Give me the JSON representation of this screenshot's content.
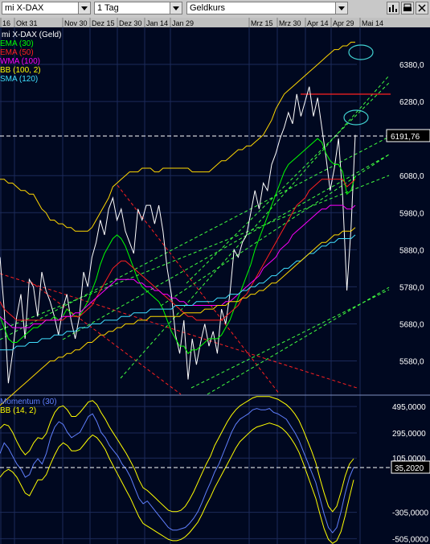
{
  "toolbar": {
    "instrument": "mi X-DAX",
    "period": "1 Tag",
    "price_type": "Geldkurs"
  },
  "chart_data": [
    {
      "type": "line",
      "title": "mi X-DAX (Geld)",
      "x_labels": [
        "16",
        "Okt 31",
        "Nov 30",
        "Dez 15",
        "Dez 30",
        "Jan 14",
        "Jan 29",
        "Mrz 15",
        "Mrz 30",
        "Apr 14",
        "Apr 29",
        "Mai 14"
      ],
      "y_ticks": [
        "6380,0",
        "6280,0",
        "6191,76",
        "6080,0",
        "5980,0",
        "5880,0",
        "5780,0",
        "5680,0",
        "5580,0"
      ],
      "ylim": [
        5490,
        6480
      ],
      "last_value": "6191,76",
      "legend": [
        {
          "name": "EMA (30)",
          "color": "#00ff00"
        },
        {
          "name": "EMA (50)",
          "color": "#ff2020"
        },
        {
          "name": "WMA (100)",
          "color": "#ff00ff"
        },
        {
          "name": "BB (100, 2)",
          "color": "#ffff00"
        },
        {
          "name": "SMA (120)",
          "color": "#40e0ff"
        }
      ],
      "series": [
        {
          "color": "#ffffff",
          "values": [
            5860,
            5720,
            5520,
            5600,
            5700,
            5760,
            5640,
            5800,
            5780,
            5700,
            5820,
            5770,
            5740,
            5700,
            5650,
            5720,
            5760,
            5690,
            5640,
            5700,
            5820,
            5780,
            5860,
            5900,
            5960,
            5920,
            5990,
            6020,
            5960,
            5990,
            5930,
            5900,
            5870,
            5990,
            5960,
            6000,
            6000,
            5950,
            6000,
            5930,
            5830,
            5760,
            5650,
            5600,
            5690,
            5530,
            5640,
            5570,
            5630,
            5680,
            5620,
            5660,
            5600,
            5720,
            5680,
            5760,
            5880,
            5860,
            5900,
            5920,
            5980,
            6040,
            5990,
            6060,
            6040,
            6110,
            6140,
            6180,
            6210,
            6250,
            6220,
            6300,
            6240,
            6280,
            6320,
            6240,
            6290,
            6210,
            6130,
            6040,
            6100,
            6180,
            6020,
            5770,
            5940,
            6190
          ]
        },
        {
          "color": "#00ff00",
          "values": [
            5700,
            5670,
            5640,
            5630,
            5630,
            5640,
            5650,
            5660,
            5670,
            5670,
            5680,
            5690,
            5690,
            5700,
            5690,
            5700,
            5720,
            5710,
            5700,
            5700,
            5720,
            5740,
            5770,
            5800,
            5840,
            5870,
            5890,
            5910,
            5920,
            5910,
            5890,
            5860,
            5830,
            5800,
            5780,
            5770,
            5760,
            5750,
            5740,
            5720,
            5690,
            5660,
            5640,
            5620,
            5620,
            5600,
            5610,
            5610,
            5620,
            5630,
            5640,
            5640,
            5640,
            5650,
            5670,
            5690,
            5720,
            5750,
            5780,
            5810,
            5840,
            5880,
            5910,
            5940,
            5970,
            6000,
            6030,
            6060,
            6090,
            6110,
            6120,
            6130,
            6140,
            6150,
            6160,
            6170,
            6180,
            6170,
            6140,
            6120,
            6110,
            6110,
            6090,
            6030,
            6040,
            6080
          ]
        },
        {
          "color": "#ff2020",
          "values": [
            5740,
            5720,
            5710,
            5700,
            5690,
            5690,
            5690,
            5690,
            5690,
            5690,
            5690,
            5690,
            5690,
            5690,
            5690,
            5690,
            5700,
            5700,
            5700,
            5700,
            5710,
            5720,
            5730,
            5750,
            5770,
            5790,
            5810,
            5830,
            5840,
            5850,
            5850,
            5840,
            5830,
            5820,
            5810,
            5800,
            5790,
            5780,
            5770,
            5760,
            5750,
            5740,
            5730,
            5720,
            5710,
            5700,
            5700,
            5690,
            5690,
            5690,
            5690,
            5690,
            5690,
            5690,
            5700,
            5710,
            5720,
            5730,
            5750,
            5760,
            5780,
            5800,
            5820,
            5840,
            5860,
            5880,
            5900,
            5920,
            5940,
            5960,
            5980,
            6000,
            6010,
            6020,
            6040,
            6050,
            6060,
            6070,
            6070,
            6070,
            6070,
            6070,
            6070,
            6050,
            6060,
            6070
          ]
        },
        {
          "color": "#ff00ff",
          "values": [
            5700,
            5690,
            5680,
            5670,
            5670,
            5670,
            5670,
            5670,
            5680,
            5680,
            5680,
            5690,
            5690,
            5690,
            5690,
            5700,
            5700,
            5700,
            5710,
            5710,
            5720,
            5730,
            5740,
            5750,
            5760,
            5770,
            5780,
            5790,
            5800,
            5800,
            5800,
            5800,
            5800,
            5790,
            5790,
            5780,
            5780,
            5770,
            5770,
            5760,
            5760,
            5750,
            5750,
            5740,
            5740,
            5730,
            5730,
            5730,
            5730,
            5730,
            5730,
            5730,
            5730,
            5730,
            5740,
            5740,
            5750,
            5760,
            5770,
            5780,
            5790,
            5800,
            5810,
            5830,
            5840,
            5850,
            5860,
            5880,
            5890,
            5900,
            5920,
            5930,
            5940,
            5950,
            5960,
            5970,
            5980,
            5990,
            5990,
            6000,
            6000,
            6000,
            6000,
            5990,
            5990,
            6000
          ]
        },
        {
          "color": "#40e0ff",
          "values": [
            5610,
            5610,
            5610,
            5610,
            5620,
            5620,
            5620,
            5630,
            5630,
            5630,
            5640,
            5640,
            5640,
            5650,
            5650,
            5650,
            5660,
            5660,
            5660,
            5670,
            5670,
            5670,
            5680,
            5680,
            5680,
            5690,
            5690,
            5690,
            5690,
            5700,
            5700,
            5700,
            5710,
            5710,
            5710,
            5710,
            5720,
            5720,
            5720,
            5720,
            5720,
            5720,
            5730,
            5730,
            5730,
            5730,
            5730,
            5740,
            5740,
            5740,
            5740,
            5740,
            5750,
            5750,
            5750,
            5760,
            5760,
            5760,
            5770,
            5770,
            5780,
            5780,
            5790,
            5790,
            5800,
            5810,
            5810,
            5820,
            5830,
            5830,
            5840,
            5850,
            5850,
            5860,
            5870,
            5870,
            5880,
            5890,
            5890,
            5900,
            5900,
            5910,
            5910,
            5910,
            5910,
            5920
          ]
        },
        {
          "color": "#ffd800",
          "values": [
            6070,
            6070,
            6060,
            6060,
            6050,
            6040,
            6040,
            6030,
            6030,
            6010,
            5990,
            5980,
            5960,
            5960,
            5950,
            5950,
            5940,
            5940,
            5930,
            5930,
            5930,
            5930,
            5940,
            5960,
            5980,
            6000,
            6020,
            6050,
            6060,
            6070,
            6080,
            6090,
            6090,
            6090,
            6100,
            6100,
            6100,
            6090,
            6090,
            6100,
            6100,
            6100,
            6100,
            6100,
            6100,
            6100,
            6090,
            6090,
            6090,
            6090,
            6090,
            6100,
            6110,
            6120,
            6120,
            6130,
            6140,
            6150,
            6150,
            6160,
            6160,
            6170,
            6180,
            6190,
            6210,
            6230,
            6260,
            6280,
            6300,
            6310,
            6320,
            6330,
            6340,
            6350,
            6360,
            6370,
            6380,
            6390,
            6400,
            6410,
            6420,
            6420,
            6430,
            6430,
            6440,
            6440
          ]
        },
        {
          "color": "#ffd800",
          "values": [
            5460,
            5470,
            5480,
            5490,
            5500,
            5510,
            5520,
            5530,
            5540,
            5550,
            5560,
            5570,
            5580,
            5580,
            5590,
            5590,
            5600,
            5600,
            5610,
            5610,
            5620,
            5630,
            5630,
            5640,
            5650,
            5650,
            5660,
            5660,
            5670,
            5670,
            5680,
            5680,
            5680,
            5690,
            5690,
            5690,
            5700,
            5700,
            5700,
            5700,
            5700,
            5700,
            5700,
            5700,
            5710,
            5710,
            5710,
            5710,
            5710,
            5720,
            5720,
            5720,
            5730,
            5730,
            5730,
            5740,
            5740,
            5740,
            5750,
            5750,
            5760,
            5760,
            5770,
            5770,
            5780,
            5790,
            5790,
            5800,
            5810,
            5820,
            5830,
            5840,
            5850,
            5860,
            5870,
            5880,
            5890,
            5900,
            5900,
            5910,
            5920,
            5920,
            5930,
            5930,
            5930,
            5940
          ]
        }
      ]
    },
    {
      "type": "line",
      "title": "Momentum (30)",
      "legend": [
        {
          "name": "Momentum (30)",
          "color": "#6080ff"
        },
        {
          "name": "BB (14, 2)",
          "color": "#ffff00"
        }
      ],
      "y_ticks": [
        "495,0000",
        "295,0000",
        "35,2020",
        "105,0000",
        "-305,0000",
        "-505,0000"
      ],
      "ylim": [
        -545,
        575
      ],
      "last_value": "35,2020",
      "series": [
        {
          "name": "Momentum (30)",
          "color": "#6080ff",
          "values": [
            140,
            220,
            180,
            120,
            60,
            20,
            -40,
            -20,
            60,
            100,
            60,
            140,
            260,
            340,
            380,
            360,
            300,
            260,
            280,
            300,
            360,
            420,
            440,
            380,
            300,
            260,
            200,
            160,
            120,
            60,
            20,
            -40,
            -120,
            -200,
            -240,
            -220,
            -260,
            -300,
            -340,
            -380,
            -420,
            -440,
            -440,
            -430,
            -420,
            -390,
            -350,
            -300,
            -230,
            -150,
            -80,
            0,
            60,
            140,
            220,
            300,
            360,
            400,
            420,
            440,
            470,
            480,
            470,
            470,
            480,
            450,
            440,
            420,
            400,
            350,
            300,
            240,
            160,
            80,
            0,
            -80,
            -200,
            -320,
            -420,
            -460,
            -420,
            -300,
            -160,
            -40,
            35
          ]
        },
        {
          "name": "BB upper",
          "color": "#ffff00",
          "values": [
            330,
            360,
            350,
            300,
            230,
            170,
            130,
            160,
            220,
            260,
            250,
            290,
            380,
            450,
            490,
            500,
            470,
            420,
            420,
            450,
            490,
            530,
            540,
            510,
            450,
            400,
            340,
            290,
            240,
            190,
            140,
            80,
            20,
            -60,
            -120,
            -140,
            -170,
            -200,
            -230,
            -260,
            -290,
            -300,
            -300,
            -290,
            -260,
            -210,
            -150,
            -80,
            -10,
            60,
            120,
            200,
            260,
            320,
            380,
            430,
            470,
            500,
            520,
            540,
            560,
            570,
            570,
            570,
            570,
            560,
            550,
            530,
            510,
            480,
            440,
            390,
            320,
            240,
            160,
            70,
            -50,
            -160,
            -260,
            -300,
            -260,
            -150,
            -30,
            60,
            100
          ]
        },
        {
          "name": "BB lower",
          "color": "#ffff00",
          "values": [
            -40,
            0,
            20,
            0,
            -40,
            -100,
            -160,
            -180,
            -120,
            -60,
            -60,
            -20,
            60,
            130,
            190,
            220,
            200,
            160,
            160,
            170,
            210,
            250,
            280,
            260,
            220,
            170,
            100,
            40,
            -20,
            -80,
            -140,
            -200,
            -270,
            -340,
            -390,
            -410,
            -430,
            -450,
            -470,
            -490,
            -510,
            -520,
            -520,
            -510,
            -490,
            -460,
            -420,
            -380,
            -320,
            -250,
            -190,
            -120,
            -60,
            0,
            60,
            120,
            180,
            230,
            260,
            290,
            320,
            340,
            350,
            360,
            370,
            360,
            350,
            330,
            300,
            260,
            210,
            150,
            70,
            -20,
            -110,
            -200,
            -320,
            -430,
            -510,
            -540,
            -520,
            -450,
            -330,
            -190,
            -60
          ]
        }
      ]
    }
  ]
}
